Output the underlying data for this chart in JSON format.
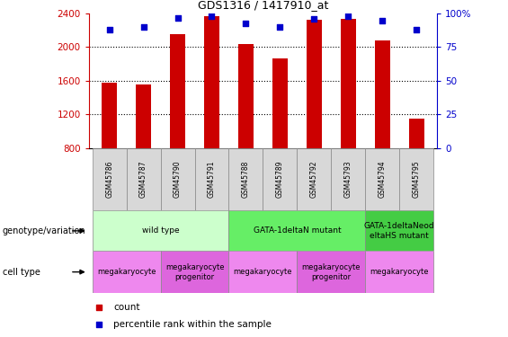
{
  "title": "GDS1316 / 1417910_at",
  "samples": [
    "GSM45786",
    "GSM45787",
    "GSM45790",
    "GSM45791",
    "GSM45788",
    "GSM45789",
    "GSM45792",
    "GSM45793",
    "GSM45794",
    "GSM45795"
  ],
  "counts": [
    1580,
    1560,
    2150,
    2370,
    2040,
    1870,
    2320,
    2340,
    2080,
    1150
  ],
  "percentiles": [
    88,
    90,
    97,
    98,
    93,
    90,
    96,
    98,
    95,
    88
  ],
  "y_min": 800,
  "y_max": 2400,
  "y_ticks": [
    800,
    1200,
    1600,
    2000,
    2400
  ],
  "y2_ticks": [
    0,
    25,
    50,
    75,
    100
  ],
  "bar_color": "#cc0000",
  "dot_color": "#0000cc",
  "genotype_groups": [
    {
      "label": "wild type",
      "start": 0,
      "end": 4,
      "color": "#ccffcc"
    },
    {
      "label": "GATA-1deltaN mutant",
      "start": 4,
      "end": 8,
      "color": "#66ee66"
    },
    {
      "label": "GATA-1deltaNeod\neltaHS mutant",
      "start": 8,
      "end": 10,
      "color": "#44cc44"
    }
  ],
  "cell_type_groups": [
    {
      "label": "megakaryocyte",
      "start": 0,
      "end": 2,
      "color": "#ee88ee"
    },
    {
      "label": "megakaryocyte\nprogenitor",
      "start": 2,
      "end": 4,
      "color": "#dd66dd"
    },
    {
      "label": "megakaryocyte",
      "start": 4,
      "end": 6,
      "color": "#ee88ee"
    },
    {
      "label": "megakaryocyte\nprogenitor",
      "start": 6,
      "end": 8,
      "color": "#dd66dd"
    },
    {
      "label": "megakaryocyte",
      "start": 8,
      "end": 10,
      "color": "#ee88ee"
    }
  ],
  "legend_count_label": "count",
  "legend_pct_label": "percentile rank within the sample",
  "genotype_label": "genotype/variation",
  "cell_type_label": "cell type",
  "grid_color": "#000000",
  "tick_color_left": "#cc0000",
  "tick_color_right": "#0000cc"
}
